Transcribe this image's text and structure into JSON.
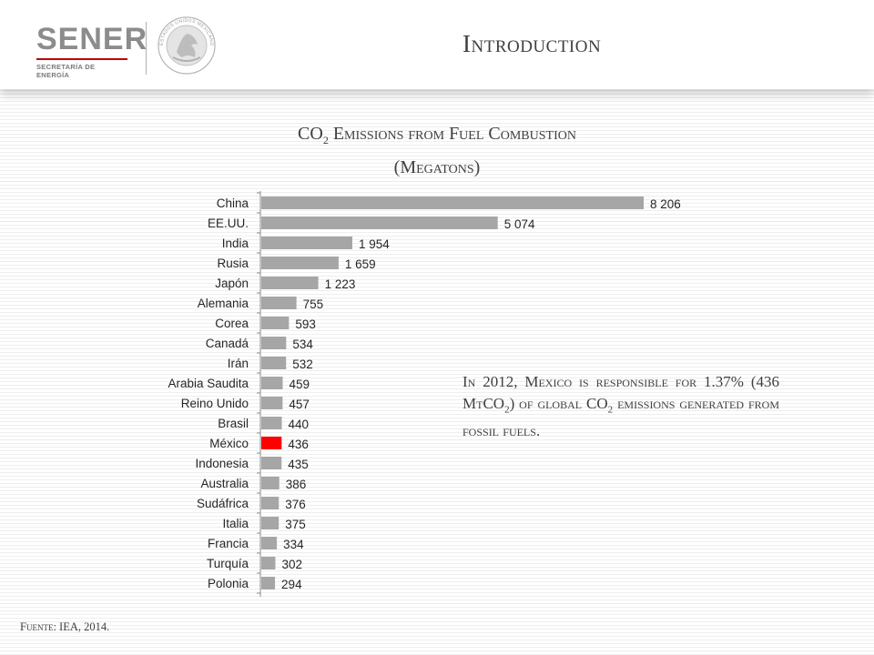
{
  "header": {
    "logo_text": "SENER",
    "logo_subtext": "SECRETARÍA DE ENERGÍA",
    "seal_text": "ESTADOS UNIDOS MEXICANOS",
    "slide_title": "Introduction"
  },
  "chart_data": {
    "type": "bar",
    "orientation": "horizontal",
    "title_prefix": "CO",
    "title_subscript": "2",
    "title_rest": " Emissions from Fuel Combustion",
    "title_line2": "(Megatons)",
    "categories": [
      "China",
      "EE.UU.",
      "India",
      "Rusia",
      "Japón",
      "Alemania",
      "Corea",
      "Canadá",
      "Irán",
      "Arabia Saudita",
      "Reino Unido",
      "Brasil",
      "México",
      "Indonesia",
      "Australia",
      "Sudáfrica",
      "Italia",
      "Francia",
      "Turquía",
      "Polonia"
    ],
    "values": [
      8206,
      5074,
      1954,
      1659,
      1223,
      755,
      593,
      534,
      532,
      459,
      457,
      440,
      436,
      435,
      386,
      376,
      375,
      334,
      302,
      294
    ],
    "value_labels": [
      "8 206",
      "5 074",
      "1 954",
      "1 659",
      "1 223",
      "755",
      "593",
      "534",
      "532",
      "459",
      "457",
      "440",
      "436",
      "435",
      "386",
      "376",
      "375",
      "334",
      "302",
      "294"
    ],
    "bar_color": "#a6a6a6",
    "highlight_category": "México",
    "highlight_color": "#ff0000",
    "xlim": [
      0,
      9000
    ],
    "grid": false,
    "legend": "none"
  },
  "note": {
    "part1": "In 2012, Mexico is responsible for 1.37% (436 MtCO",
    "sub1": "2",
    "part2": ") of global CO",
    "sub2": "2",
    "part3": " emissions generated from fossil fuels."
  },
  "source": {
    "label": "Fuente:",
    "text": " IEA, 2014."
  }
}
